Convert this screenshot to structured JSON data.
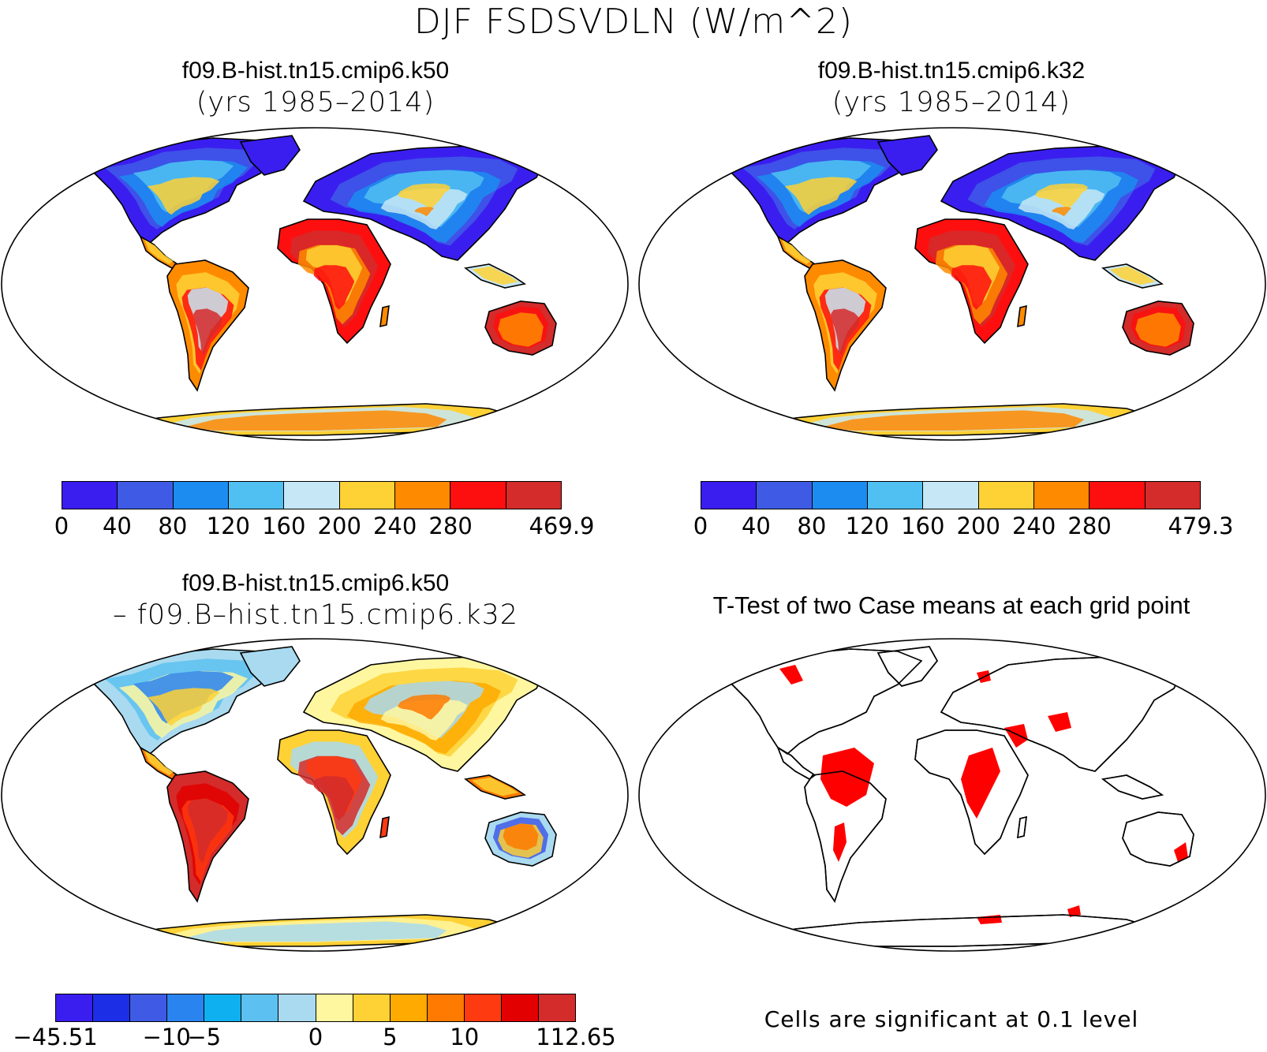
{
  "title": "DJF FSDSVDLN (W/m^2)",
  "panels": {
    "top_left": {
      "title_line1": "f09.B-hist.tn15.cmip6.k50",
      "title_line2": "(yrs 1985–2014)",
      "colorbar": {
        "colors": [
          "#3a1ef0",
          "#3f5be6",
          "#1c8cf0",
          "#50bff2",
          "#c6e7f6",
          "#fed135",
          "#fe8a00",
          "#fe0f0f",
          "#d42b2b"
        ],
        "labels": [
          "0",
          "40",
          "80",
          "120",
          "160",
          "200",
          "240",
          "280",
          "469.9"
        ]
      }
    },
    "top_right": {
      "title_line1": "f09.B-hist.tn15.cmip6.k32",
      "title_line2": "(yrs 1985–2014)",
      "colorbar": {
        "colors": [
          "#3a1ef0",
          "#3f5be6",
          "#1c8cf0",
          "#50bff2",
          "#c6e7f6",
          "#fed135",
          "#fe8a00",
          "#fe0f0f",
          "#d42b2b"
        ],
        "labels": [
          "0",
          "40",
          "80",
          "120",
          "160",
          "200",
          "240",
          "280",
          "479.3"
        ]
      }
    },
    "bottom_left": {
      "title_line1": "f09.B-hist.tn15.cmip6.k50",
      "title_line2": "– f09.B–hist.tn15.cmip6.k32",
      "colorbar": {
        "colors": [
          "#3a1ef0",
          "#1c2fe6",
          "#3f5be6",
          "#2a84f0",
          "#0fb0f0",
          "#5cc1f0",
          "#a9daf0",
          "#fff7a0",
          "#fed135",
          "#feaa00",
          "#fe7a00",
          "#fe3a10",
          "#e20000",
          "#d42b2b"
        ],
        "labels": [
          "−45.51",
          "−10",
          "−5",
          "0",
          "5",
          "10",
          "112.65"
        ]
      }
    },
    "bottom_right": {
      "title": "T-Test of two Case means at each grid point",
      "note": "Cells are significant at 0.1 level",
      "significant_color": "#fe0000"
    }
  }
}
